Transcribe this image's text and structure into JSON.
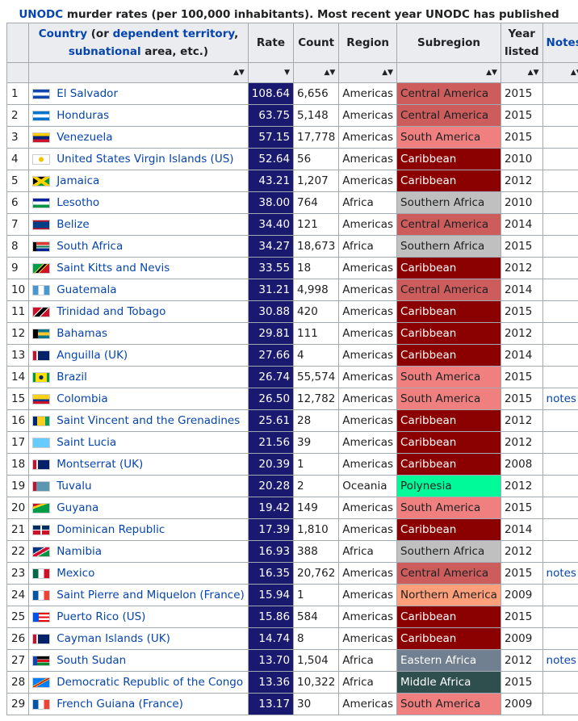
{
  "caption": {
    "link_text": "UNODC",
    "text": " murder rates (per 100,000 inhabitants). Most recent year UNODC has published"
  },
  "headers": {
    "country_link": "Country",
    "country_mid1": " (or ",
    "country_link2": "dependent territory",
    "country_mid2": ", ",
    "country_link3": "subnational",
    "country_tail": " area, etc.)",
    "rate": "Rate",
    "count": "Count",
    "region": "Region",
    "subregion": "Subregion",
    "year": "Year listed",
    "notes": "Notes",
    "sort_icon": "▲▼"
  },
  "colors": {
    "rate_bg": "#191970",
    "Central America": "#cd5c5c",
    "South America": "#f08080",
    "Caribbean": "#8b0000",
    "Southern Africa": "#c0c0c0",
    "Polynesia": "#00fa9a",
    "Northern America": "#ffa07a",
    "Eastern Africa": "#708090",
    "Middle Africa": "#2f4f4f"
  },
  "rows": [
    {
      "rank": "1",
      "country": "El Salvador",
      "flag": "elsalvador",
      "rate": "108.64",
      "count": "6,656",
      "region": "Americas",
      "subregion": "Central America",
      "year": "2015",
      "notes": ""
    },
    {
      "rank": "2",
      "country": "Honduras",
      "flag": "honduras",
      "rate": "63.75",
      "count": "5,148",
      "region": "Americas",
      "subregion": "Central America",
      "year": "2015",
      "notes": ""
    },
    {
      "rank": "3",
      "country": "Venezuela",
      "flag": "venezuela",
      "rate": "57.15",
      "count": "17,778",
      "region": "Americas",
      "subregion": "South America",
      "year": "2015",
      "notes": ""
    },
    {
      "rank": "4",
      "country": "United States Virgin Islands (US)",
      "flag": "usvi",
      "rate": "52.64",
      "count": "56",
      "region": "Americas",
      "subregion": "Caribbean",
      "year": "2010",
      "notes": ""
    },
    {
      "rank": "5",
      "country": "Jamaica",
      "flag": "jamaica",
      "rate": "43.21",
      "count": "1,207",
      "region": "Americas",
      "subregion": "Caribbean",
      "year": "2012",
      "notes": ""
    },
    {
      "rank": "6",
      "country": "Lesotho",
      "flag": "lesotho",
      "rate": "38.00",
      "count": "764",
      "region": "Africa",
      "subregion": "Southern Africa",
      "year": "2010",
      "notes": ""
    },
    {
      "rank": "7",
      "country": "Belize",
      "flag": "belize",
      "rate": "34.40",
      "count": "121",
      "region": "Americas",
      "subregion": "Central America",
      "year": "2014",
      "notes": ""
    },
    {
      "rank": "8",
      "country": "South Africa",
      "flag": "southafrica",
      "rate": "34.27",
      "count": "18,673",
      "region": "Africa",
      "subregion": "Southern Africa",
      "year": "2015",
      "notes": ""
    },
    {
      "rank": "9",
      "country": "Saint Kitts and Nevis",
      "flag": "stkitts",
      "rate": "33.55",
      "count": "18",
      "region": "Americas",
      "subregion": "Caribbean",
      "year": "2012",
      "notes": ""
    },
    {
      "rank": "10",
      "country": "Guatemala",
      "flag": "guatemala",
      "rate": "31.21",
      "count": "4,998",
      "region": "Americas",
      "subregion": "Central America",
      "year": "2014",
      "notes": ""
    },
    {
      "rank": "11",
      "country": "Trinidad and Tobago",
      "flag": "trinidad",
      "rate": "30.88",
      "count": "420",
      "region": "Americas",
      "subregion": "Caribbean",
      "year": "2015",
      "notes": ""
    },
    {
      "rank": "12",
      "country": "Bahamas",
      "flag": "bahamas",
      "rate": "29.81",
      "count": "111",
      "region": "Americas",
      "subregion": "Caribbean",
      "year": "2012",
      "notes": ""
    },
    {
      "rank": "13",
      "country": "Anguilla (UK)",
      "flag": "anguilla",
      "rate": "27.66",
      "count": "4",
      "region": "Americas",
      "subregion": "Caribbean",
      "year": "2014",
      "notes": ""
    },
    {
      "rank": "14",
      "country": "Brazil",
      "flag": "brazil",
      "rate": "26.74",
      "count": "55,574",
      "region": "Americas",
      "subregion": "South America",
      "year": "2015",
      "notes": ""
    },
    {
      "rank": "15",
      "country": "Colombia",
      "flag": "colombia",
      "rate": "26.50",
      "count": "12,782",
      "region": "Americas",
      "subregion": "South America",
      "year": "2015",
      "notes": "notes"
    },
    {
      "rank": "16",
      "country": "Saint Vincent and the Grenadines",
      "flag": "stvincent",
      "rate": "25.61",
      "count": "28",
      "region": "Americas",
      "subregion": "Caribbean",
      "year": "2012",
      "notes": ""
    },
    {
      "rank": "17",
      "country": "Saint Lucia",
      "flag": "stlucia",
      "rate": "21.56",
      "count": "39",
      "region": "Americas",
      "subregion": "Caribbean",
      "year": "2012",
      "notes": ""
    },
    {
      "rank": "18",
      "country": "Montserrat (UK)",
      "flag": "montserrat",
      "rate": "20.39",
      "count": "1",
      "region": "Americas",
      "subregion": "Caribbean",
      "year": "2008",
      "notes": ""
    },
    {
      "rank": "19",
      "country": "Tuvalu",
      "flag": "tuvalu",
      "rate": "20.28",
      "count": "2",
      "region": "Oceania",
      "subregion": "Polynesia",
      "year": "2012",
      "notes": ""
    },
    {
      "rank": "20",
      "country": "Guyana",
      "flag": "guyana",
      "rate": "19.42",
      "count": "149",
      "region": "Americas",
      "subregion": "South America",
      "year": "2015",
      "notes": ""
    },
    {
      "rank": "21",
      "country": "Dominican Republic",
      "flag": "dominican",
      "rate": "17.39",
      "count": "1,810",
      "region": "Americas",
      "subregion": "Caribbean",
      "year": "2014",
      "notes": ""
    },
    {
      "rank": "22",
      "country": "Namibia",
      "flag": "namibia",
      "rate": "16.93",
      "count": "388",
      "region": "Africa",
      "subregion": "Southern Africa",
      "year": "2012",
      "notes": ""
    },
    {
      "rank": "23",
      "country": "Mexico",
      "flag": "mexico",
      "rate": "16.35",
      "count": "20,762",
      "region": "Americas",
      "subregion": "Central America",
      "year": "2015",
      "notes": "notes"
    },
    {
      "rank": "24",
      "country": "Saint Pierre and Miquelon (France)",
      "flag": "france",
      "rate": "15.94",
      "count": "1",
      "region": "Americas",
      "subregion": "Northern America",
      "year": "2009",
      "notes": ""
    },
    {
      "rank": "25",
      "country": "Puerto Rico (US)",
      "flag": "puertorico",
      "rate": "15.86",
      "count": "584",
      "region": "Americas",
      "subregion": "Caribbean",
      "year": "2015",
      "notes": ""
    },
    {
      "rank": "26",
      "country": "Cayman Islands (UK)",
      "flag": "cayman",
      "rate": "14.74",
      "count": "8",
      "region": "Americas",
      "subregion": "Caribbean",
      "year": "2009",
      "notes": ""
    },
    {
      "rank": "27",
      "country": "South Sudan",
      "flag": "southsudan",
      "rate": "13.70",
      "count": "1,504",
      "region": "Africa",
      "subregion": "Eastern Africa",
      "year": "2012",
      "notes": "notes"
    },
    {
      "rank": "28",
      "country": "Democratic Republic of the Congo",
      "flag": "drc",
      "rate": "13.36",
      "count": "10,322",
      "region": "Africa",
      "subregion": "Middle Africa",
      "year": "2015",
      "notes": ""
    },
    {
      "rank": "29",
      "country": "French Guiana (France)",
      "flag": "france",
      "rate": "13.17",
      "count": "30",
      "region": "Americas",
      "subregion": "South America",
      "year": "2009",
      "notes": ""
    }
  ]
}
